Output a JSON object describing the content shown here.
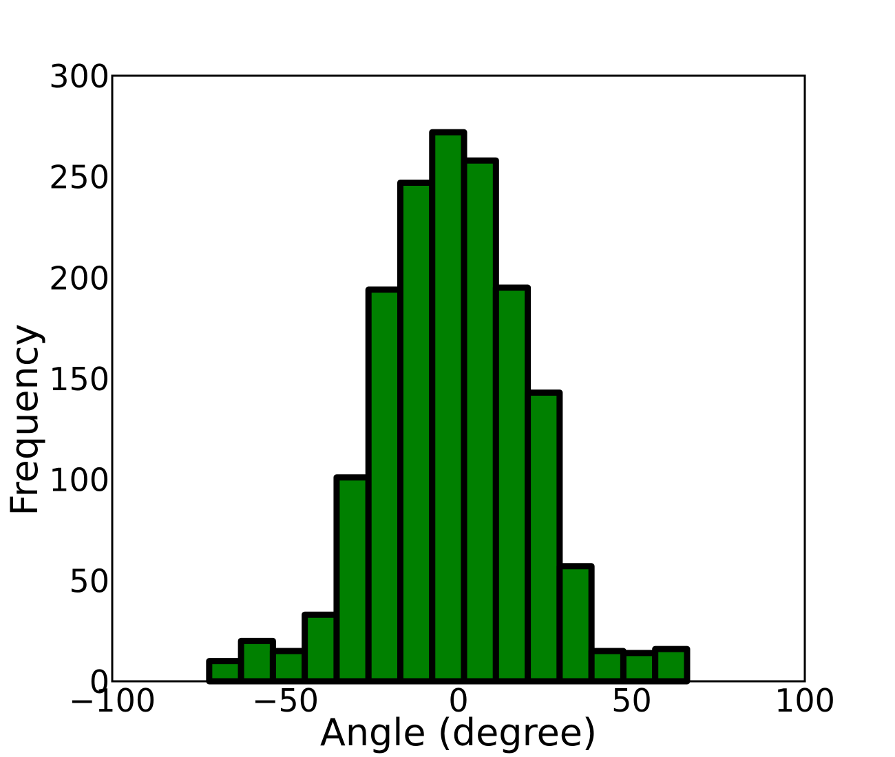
{
  "chart_data": {
    "type": "bar",
    "title": "",
    "xlabel": "Angle (degree)",
    "ylabel": "Frequency",
    "xlim": [
      -100,
      100
    ],
    "ylim": [
      0,
      300
    ],
    "xticks": [
      -100,
      -50,
      0,
      50,
      100
    ],
    "xtick_labels": [
      "−100",
      "−50",
      "0",
      "50",
      "100"
    ],
    "yticks": [
      0,
      50,
      100,
      150,
      200,
      250,
      300
    ],
    "ytick_labels": [
      "0",
      "50",
      "100",
      "150",
      "200",
      "250",
      "300"
    ],
    "grid": false,
    "bar_color": "#008000",
    "edge_color": "#000000",
    "bins": [
      {
        "x0": -72.0,
        "x1": -62.8,
        "value": 10
      },
      {
        "x0": -62.8,
        "x1": -53.6,
        "value": 20
      },
      {
        "x0": -53.6,
        "x1": -44.4,
        "value": 15
      },
      {
        "x0": -44.4,
        "x1": -35.2,
        "value": 33
      },
      {
        "x0": -35.2,
        "x1": -26.0,
        "value": 101
      },
      {
        "x0": -26.0,
        "x1": -16.8,
        "value": 194
      },
      {
        "x0": -16.8,
        "x1": -7.6,
        "value": 247
      },
      {
        "x0": -7.6,
        "x1": 1.6,
        "value": 272
      },
      {
        "x0": 1.6,
        "x1": 10.8,
        "value": 258
      },
      {
        "x0": 10.8,
        "x1": 20.0,
        "value": 195
      },
      {
        "x0": 20.0,
        "x1": 29.2,
        "value": 143
      },
      {
        "x0": 29.2,
        "x1": 38.4,
        "value": 57
      },
      {
        "x0": 38.4,
        "x1": 47.6,
        "value": 15
      },
      {
        "x0": 47.6,
        "x1": 56.8,
        "value": 14
      },
      {
        "x0": 56.8,
        "x1": 66.0,
        "value": 16
      }
    ]
  }
}
